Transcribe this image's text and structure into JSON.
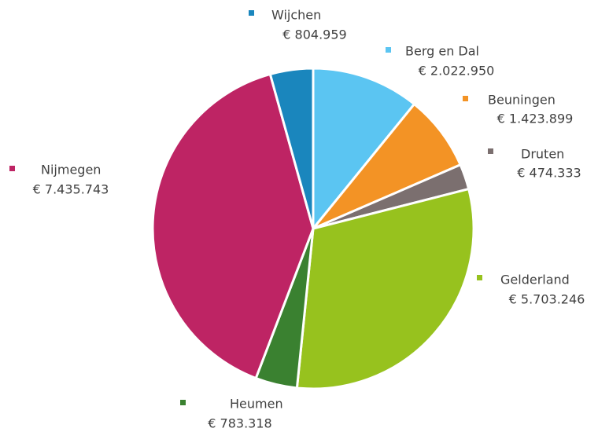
{
  "chart_data": {
    "type": "pie",
    "categories": [
      "Berg en Dal",
      "Beuningen",
      "Druten",
      "Gelderland",
      "Heumen",
      "Nijmegen",
      "Wijchen"
    ],
    "values": [
      2022950,
      1423899,
      474333,
      5703246,
      783318,
      7435743,
      804959
    ],
    "value_labels": [
      "€ 2.022.950",
      "€ 1.423.899",
      "€ 474.333",
      "€ 5.703.246",
      "€ 783.318",
      "€ 7.435.743",
      "€ 804.959"
    ],
    "colors": [
      "#5bc5f2",
      "#f39325",
      "#7b6f6f",
      "#97c21e",
      "#3a8130",
      "#be2464",
      "#1a86bd"
    ]
  }
}
